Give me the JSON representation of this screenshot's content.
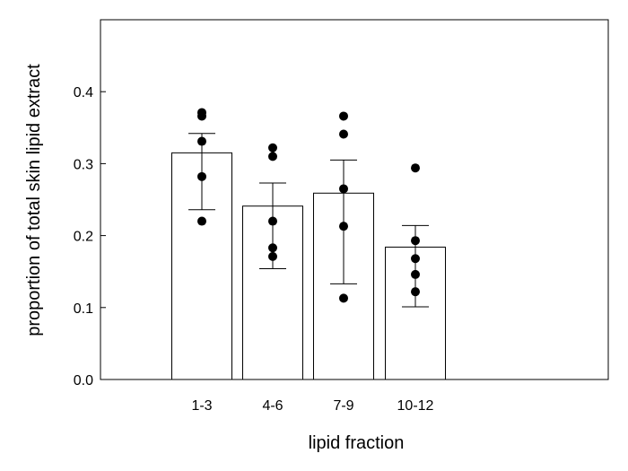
{
  "chart_data": {
    "type": "bar",
    "categories": [
      "1-3",
      "4-6",
      "7-9",
      "10-12"
    ],
    "values": [
      0.315,
      0.241,
      0.259,
      0.184
    ],
    "error_low": [
      0.236,
      0.154,
      0.133,
      0.101
    ],
    "error_high": [
      0.342,
      0.273,
      0.305,
      0.214
    ],
    "points": [
      [
        0.371,
        0.366,
        0.331,
        0.282,
        0.22
      ],
      [
        0.322,
        0.31,
        0.22,
        0.183,
        0.171
      ],
      [
        0.366,
        0.341,
        0.265,
        0.213,
        0.113
      ],
      [
        0.294,
        0.193,
        0.168,
        0.146,
        0.122
      ]
    ],
    "yticks": [
      "0.0",
      "0.1",
      "0.2",
      "0.3",
      "0.4"
    ],
    "ytick_values": [
      0.0,
      0.1,
      0.2,
      0.3,
      0.4
    ],
    "ylim": [
      0,
      0.5
    ],
    "xlabel": "lipid fraction",
    "ylabel": "proportion of total skin lipid extract",
    "grid": false,
    "legend": false,
    "colors": {
      "bar_fill": "#ffffff",
      "bar_stroke": "#000000",
      "point": "#000000"
    }
  }
}
